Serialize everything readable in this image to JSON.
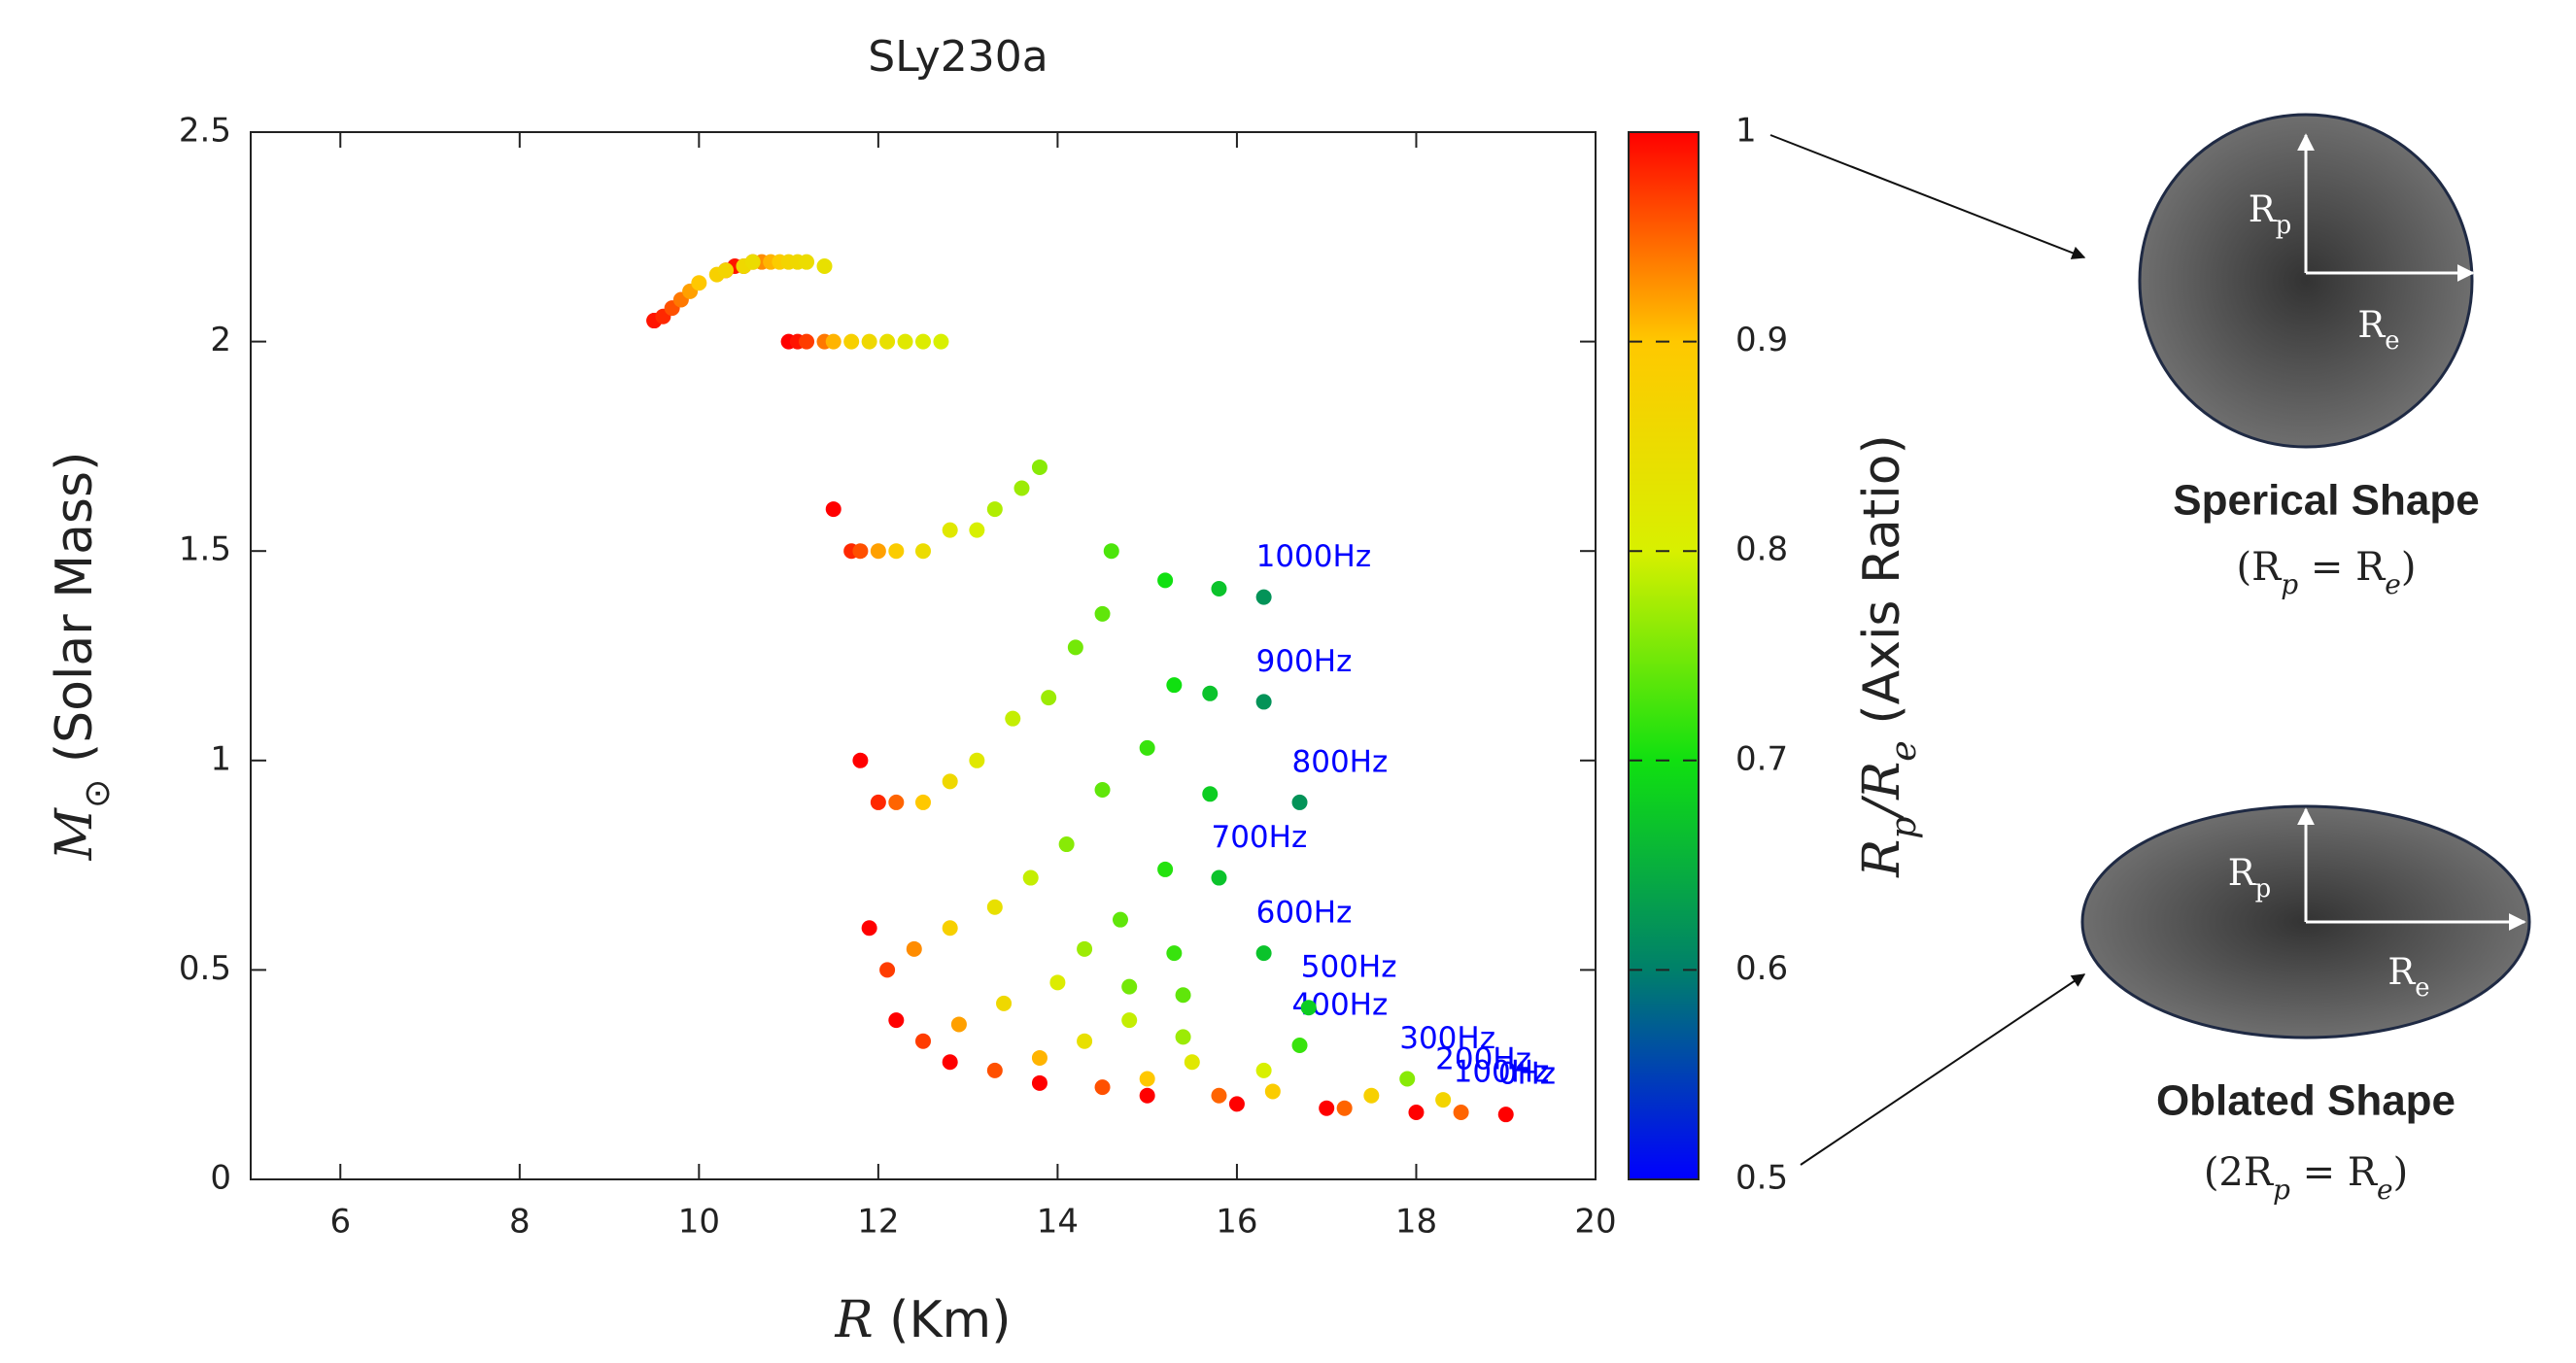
{
  "chart_data": {
    "type": "scatter",
    "title": "SLy230a",
    "xlabel": [
      "R",
      " (Km)"
    ],
    "ylabel": [
      "M",
      "⊙",
      " (Solar Mass)"
    ],
    "colorbar_label": [
      "R",
      "p",
      "/R",
      "e",
      " (Axis Ratio)"
    ],
    "xlim": [
      5,
      20
    ],
    "xticks": [
      6,
      8,
      10,
      12,
      14,
      16,
      18,
      20
    ],
    "ylim": [
      0,
      2.5
    ],
    "yticks": [
      0,
      0.5,
      1,
      1.5,
      2,
      2.5
    ],
    "clim": [
      0.5,
      1
    ],
    "cticks": [
      0.5,
      0.6,
      0.7,
      0.8,
      0.9,
      1
    ],
    "colormap": [
      "#0000ff",
      "#00806a",
      "#10e010",
      "#d8f000",
      "#ffc800",
      "#ff0000"
    ],
    "label_color": "#0000ff",
    "grid": false,
    "series": [
      {
        "name": "0Hz",
        "x": [
          9.5,
          10.3,
          11.0,
          11.5,
          11.8,
          11.9,
          12.2,
          12.8,
          13.8,
          15,
          16,
          17,
          18,
          19
        ],
        "y": [
          2.05,
          2.17,
          2.0,
          1.6,
          1.0,
          0.6,
          0.38,
          0.28,
          0.23,
          0.2,
          0.18,
          0.17,
          0.16,
          0.155
        ],
        "ratio": [
          1,
          1,
          1,
          1,
          1,
          1,
          1,
          1,
          1,
          1,
          1,
          1,
          1,
          1
        ]
      },
      {
        "name": "100Hz",
        "x": [
          9.5,
          10.4,
          11.1,
          11.7,
          12.0,
          12.1,
          12.5,
          13.3,
          14.5,
          15.8,
          17.2,
          18.5
        ],
        "y": [
          2.05,
          2.18,
          2.0,
          1.5,
          0.9,
          0.5,
          0.33,
          0.26,
          0.22,
          0.2,
          0.17,
          0.16
        ],
        "ratio": [
          0.99,
          0.99,
          0.99,
          0.98,
          0.98,
          0.97,
          0.97,
          0.96,
          0.96,
          0.95,
          0.95,
          0.95
        ]
      },
      {
        "name": "200Hz",
        "x": [
          9.6,
          10.5,
          11.2,
          11.8,
          12.2,
          12.4,
          12.9,
          13.8,
          15,
          16.4,
          17.5,
          18.3
        ],
        "y": [
          2.06,
          2.18,
          2.0,
          1.5,
          0.9,
          0.55,
          0.37,
          0.29,
          0.24,
          0.21,
          0.2,
          0.19
        ],
        "ratio": [
          0.98,
          0.98,
          0.97,
          0.96,
          0.95,
          0.93,
          0.92,
          0.91,
          0.9,
          0.89,
          0.88,
          0.87
        ]
      },
      {
        "name": "300Hz",
        "x": [
          9.7,
          10.6,
          11.4,
          12.0,
          12.5,
          12.8,
          13.4,
          14.3,
          15.5,
          16.3,
          17.9
        ],
        "y": [
          2.08,
          2.19,
          2.0,
          1.5,
          0.9,
          0.6,
          0.42,
          0.33,
          0.28,
          0.26,
          0.24
        ],
        "ratio": [
          0.96,
          0.95,
          0.94,
          0.92,
          0.9,
          0.88,
          0.86,
          0.84,
          0.82,
          0.8,
          0.76
        ]
      },
      {
        "name": "400Hz",
        "x": [
          9.8,
          10.7,
          11.5,
          12.2,
          12.8,
          13.3,
          14.0,
          14.8,
          15.4,
          16.7
        ],
        "y": [
          2.1,
          2.19,
          2.0,
          1.5,
          0.95,
          0.65,
          0.47,
          0.38,
          0.34,
          0.32
        ],
        "ratio": [
          0.94,
          0.93,
          0.91,
          0.89,
          0.86,
          0.84,
          0.81,
          0.79,
          0.77,
          0.72
        ]
      },
      {
        "name": "500Hz",
        "x": [
          9.9,
          10.8,
          11.7,
          12.5,
          13.1,
          13.7,
          14.3,
          14.8,
          15.4,
          16.8
        ],
        "y": [
          2.12,
          2.19,
          2.0,
          1.5,
          1.0,
          0.72,
          0.55,
          0.46,
          0.44,
          0.41
        ],
        "ratio": [
          0.92,
          0.91,
          0.88,
          0.85,
          0.82,
          0.79,
          0.77,
          0.75,
          0.74,
          0.68
        ]
      },
      {
        "name": "600Hz",
        "x": [
          10.0,
          10.9,
          11.9,
          12.8,
          13.5,
          14.1,
          14.7,
          15.3,
          16.3
        ],
        "y": [
          2.14,
          2.19,
          2.0,
          1.55,
          1.1,
          0.8,
          0.62,
          0.54,
          0.54
        ],
        "ratio": [
          0.9,
          0.89,
          0.86,
          0.82,
          0.79,
          0.76,
          0.74,
          0.72,
          0.67
        ]
      },
      {
        "name": "700Hz",
        "x": [
          10.2,
          11.0,
          12.1,
          13.1,
          13.9,
          14.5,
          15.2,
          15.8
        ],
        "y": [
          2.16,
          2.19,
          2.0,
          1.55,
          1.15,
          0.93,
          0.74,
          0.72
        ],
        "ratio": [
          0.88,
          0.87,
          0.84,
          0.8,
          0.77,
          0.74,
          0.71,
          0.67
        ]
      },
      {
        "name": "800Hz",
        "x": [
          10.3,
          11.1,
          12.3,
          13.3,
          14.2,
          15.0,
          15.7,
          16.7
        ],
        "y": [
          2.17,
          2.19,
          2.0,
          1.6,
          1.27,
          1.03,
          0.92,
          0.9
        ],
        "ratio": [
          0.87,
          0.86,
          0.82,
          0.78,
          0.75,
          0.72,
          0.68,
          0.62
        ]
      },
      {
        "name": "900Hz",
        "x": [
          10.5,
          11.2,
          12.5,
          13.6,
          14.5,
          15.3,
          15.7,
          16.3
        ],
        "y": [
          2.18,
          2.19,
          2.0,
          1.65,
          1.35,
          1.18,
          1.16,
          1.14
        ],
        "ratio": [
          0.86,
          0.85,
          0.81,
          0.77,
          0.74,
          0.7,
          0.67,
          0.62
        ]
      },
      {
        "name": "1000Hz",
        "x": [
          10.6,
          11.4,
          12.7,
          13.8,
          14.6,
          15.2,
          15.8,
          16.3
        ],
        "y": [
          2.19,
          2.18,
          2.0,
          1.7,
          1.5,
          1.43,
          1.41,
          1.39
        ],
        "ratio": [
          0.85,
          0.84,
          0.8,
          0.76,
          0.73,
          0.7,
          0.67,
          0.62
        ]
      }
    ]
  },
  "shapes": [
    {
      "caption": "Sperical Shape",
      "relation": [
        "(R",
        "p",
        " = R",
        "e",
        ")"
      ],
      "axis_labels": [
        [
          "R",
          "p"
        ],
        [
          "R",
          "e"
        ]
      ]
    },
    {
      "caption": "Oblated Shape",
      "relation": [
        "(2R",
        "p",
        " = R",
        "e",
        ")"
      ],
      "axis_labels": [
        [
          "R",
          "p"
        ],
        [
          "R",
          "e"
        ]
      ]
    }
  ]
}
